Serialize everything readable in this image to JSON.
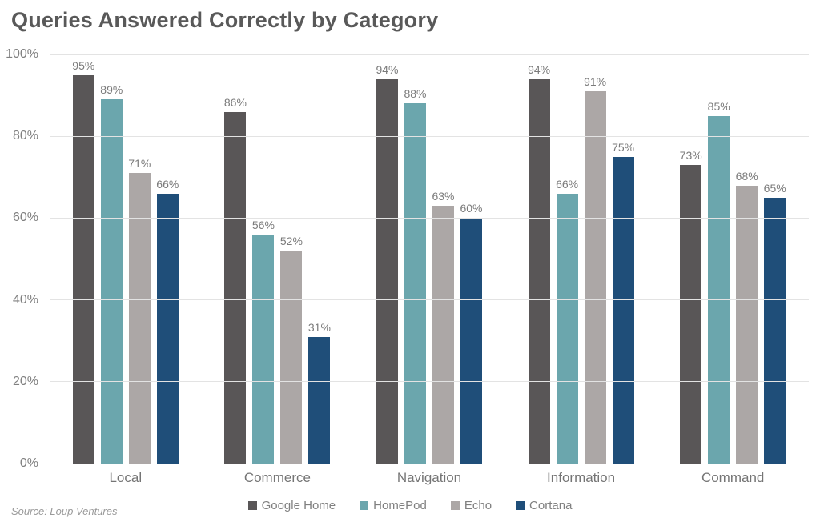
{
  "title": "Queries Answered Correctly by Category",
  "source": "Source: Loup Ventures",
  "chart_data": {
    "type": "bar",
    "title": "Queries Answered Correctly by Category",
    "categories": [
      "Local",
      "Commerce",
      "Navigation",
      "Information",
      "Command"
    ],
    "series": [
      {
        "name": "Google Home",
        "color": "#595657",
        "values": [
          95,
          86,
          94,
          94,
          73
        ]
      },
      {
        "name": "HomePod",
        "color": "#6BA6AD",
        "values": [
          89,
          56,
          88,
          66,
          85
        ]
      },
      {
        "name": "Echo",
        "color": "#ACA7A6",
        "values": [
          71,
          52,
          63,
          91,
          68
        ]
      },
      {
        "name": "Cortana",
        "color": "#1F4E79",
        "values": [
          66,
          31,
          60,
          75,
          65
        ]
      }
    ],
    "xlabel": "",
    "ylabel": "",
    "ylim": [
      0,
      100
    ],
    "ytick_interval": 20,
    "yticks": [
      "0%",
      "20%",
      "40%",
      "60%",
      "80%",
      "100%"
    ],
    "grid": true,
    "data_labels": true,
    "data_label_suffix": "%",
    "legend_position": "bottom",
    "source_text": "Source: Loup Ventures"
  }
}
